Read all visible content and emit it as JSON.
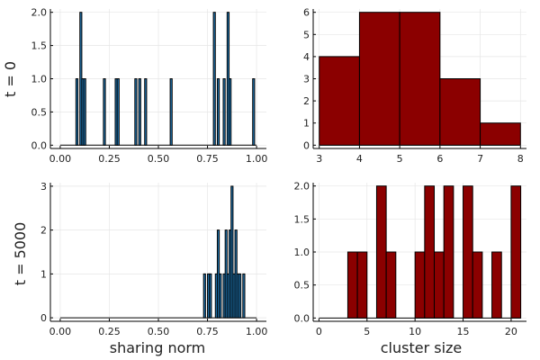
{
  "figure": {
    "row_labels": [
      "t = 0",
      "t = 5000"
    ],
    "col_labels": [
      "sharing norm",
      "cluster size"
    ]
  },
  "chart_data": [
    {
      "id": "norm_t0",
      "type": "bar",
      "subtype": "histogram",
      "bar_color": "#1f77b4",
      "xlim": [
        -0.05,
        1.05
      ],
      "ylim": [
        -0.05,
        2.05
      ],
      "xticks": [
        0.0,
        0.25,
        0.5,
        0.75,
        1.0
      ],
      "xtick_labels": [
        "0.00",
        "0.25",
        "0.50",
        "0.75",
        "1.00"
      ],
      "yticks": [
        0.0,
        0.5,
        1.0,
        1.5,
        2.0
      ],
      "ytick_labels": [
        "0.0",
        "0.5",
        "1.0",
        "1.5",
        "2.0"
      ],
      "bin_start": 0.0,
      "bin_width": 0.01,
      "bins": [
        {
          "x": 0.08,
          "count": 1
        },
        {
          "x": 0.1,
          "count": 2
        },
        {
          "x": 0.11,
          "count": 1
        },
        {
          "x": 0.12,
          "count": 1
        },
        {
          "x": 0.22,
          "count": 1
        },
        {
          "x": 0.28,
          "count": 1
        },
        {
          "x": 0.29,
          "count": 1
        },
        {
          "x": 0.38,
          "count": 1
        },
        {
          "x": 0.4,
          "count": 1
        },
        {
          "x": 0.43,
          "count": 1
        },
        {
          "x": 0.56,
          "count": 1
        },
        {
          "x": 0.78,
          "count": 2
        },
        {
          "x": 0.8,
          "count": 1
        },
        {
          "x": 0.83,
          "count": 1
        },
        {
          "x": 0.85,
          "count": 2
        },
        {
          "x": 0.86,
          "count": 1
        },
        {
          "x": 0.98,
          "count": 1
        }
      ],
      "grid": true,
      "legend": false
    },
    {
      "id": "size_t0",
      "type": "bar",
      "subtype": "histogram",
      "bar_color": "#8b0000",
      "xlim": [
        2.85,
        8.15
      ],
      "ylim": [
        -0.15,
        6.15
      ],
      "xticks": [
        3,
        4,
        5,
        6,
        7,
        8
      ],
      "xtick_labels": [
        "3",
        "4",
        "5",
        "6",
        "7",
        "8"
      ],
      "yticks": [
        0,
        1,
        2,
        3,
        4,
        5,
        6
      ],
      "ytick_labels": [
        "0",
        "1",
        "2",
        "3",
        "4",
        "5",
        "6"
      ],
      "bin_start": 3,
      "bin_width": 1,
      "bins": [
        {
          "x": 3,
          "count": 4
        },
        {
          "x": 4,
          "count": 6
        },
        {
          "x": 5,
          "count": 6
        },
        {
          "x": 6,
          "count": 3
        },
        {
          "x": 7,
          "count": 1
        }
      ],
      "grid": true,
      "legend": false
    },
    {
      "id": "norm_t5000",
      "type": "bar",
      "subtype": "histogram",
      "bar_color": "#1f77b4",
      "xlim": [
        -0.05,
        1.05
      ],
      "ylim": [
        -0.08,
        3.08
      ],
      "xticks": [
        0.0,
        0.25,
        0.5,
        0.75,
        1.0
      ],
      "xtick_labels": [
        "0.00",
        "0.25",
        "0.50",
        "0.75",
        "1.00"
      ],
      "yticks": [
        0,
        1,
        2,
        3
      ],
      "ytick_labels": [
        "0",
        "1",
        "2",
        "3"
      ],
      "bin_start": 0.0,
      "bin_width": 0.01,
      "bins": [
        {
          "x": 0.73,
          "count": 1
        },
        {
          "x": 0.75,
          "count": 1
        },
        {
          "x": 0.76,
          "count": 1
        },
        {
          "x": 0.79,
          "count": 1
        },
        {
          "x": 0.8,
          "count": 2
        },
        {
          "x": 0.81,
          "count": 1
        },
        {
          "x": 0.83,
          "count": 1
        },
        {
          "x": 0.84,
          "count": 2
        },
        {
          "x": 0.85,
          "count": 1
        },
        {
          "x": 0.86,
          "count": 2
        },
        {
          "x": 0.87,
          "count": 3
        },
        {
          "x": 0.88,
          "count": 1
        },
        {
          "x": 0.89,
          "count": 2
        },
        {
          "x": 0.9,
          "count": 1
        },
        {
          "x": 0.91,
          "count": 1
        },
        {
          "x": 0.93,
          "count": 1
        }
      ],
      "grid": true,
      "legend": false
    },
    {
      "id": "size_t5000",
      "type": "bar",
      "subtype": "histogram",
      "bar_color": "#8b0000",
      "xlim": [
        -0.6,
        21.6
      ],
      "ylim": [
        -0.05,
        2.05
      ],
      "xticks": [
        0,
        5,
        10,
        15,
        20
      ],
      "xtick_labels": [
        "0",
        "5",
        "10",
        "15",
        "20"
      ],
      "yticks": [
        0.0,
        0.5,
        1.0,
        1.5,
        2.0
      ],
      "ytick_labels": [
        "0.0",
        "0.5",
        "1.0",
        "1.5",
        "2.0"
      ],
      "bin_start": 0,
      "bin_width": 1,
      "bins": [
        {
          "x": 3,
          "count": 1
        },
        {
          "x": 4,
          "count": 1
        },
        {
          "x": 6,
          "count": 2
        },
        {
          "x": 7,
          "count": 1
        },
        {
          "x": 10,
          "count": 1
        },
        {
          "x": 11,
          "count": 2
        },
        {
          "x": 12,
          "count": 1
        },
        {
          "x": 13,
          "count": 2
        },
        {
          "x": 15,
          "count": 2
        },
        {
          "x": 16,
          "count": 1
        },
        {
          "x": 18,
          "count": 1
        },
        {
          "x": 20,
          "count": 2
        }
      ],
      "grid": true,
      "legend": false
    }
  ]
}
